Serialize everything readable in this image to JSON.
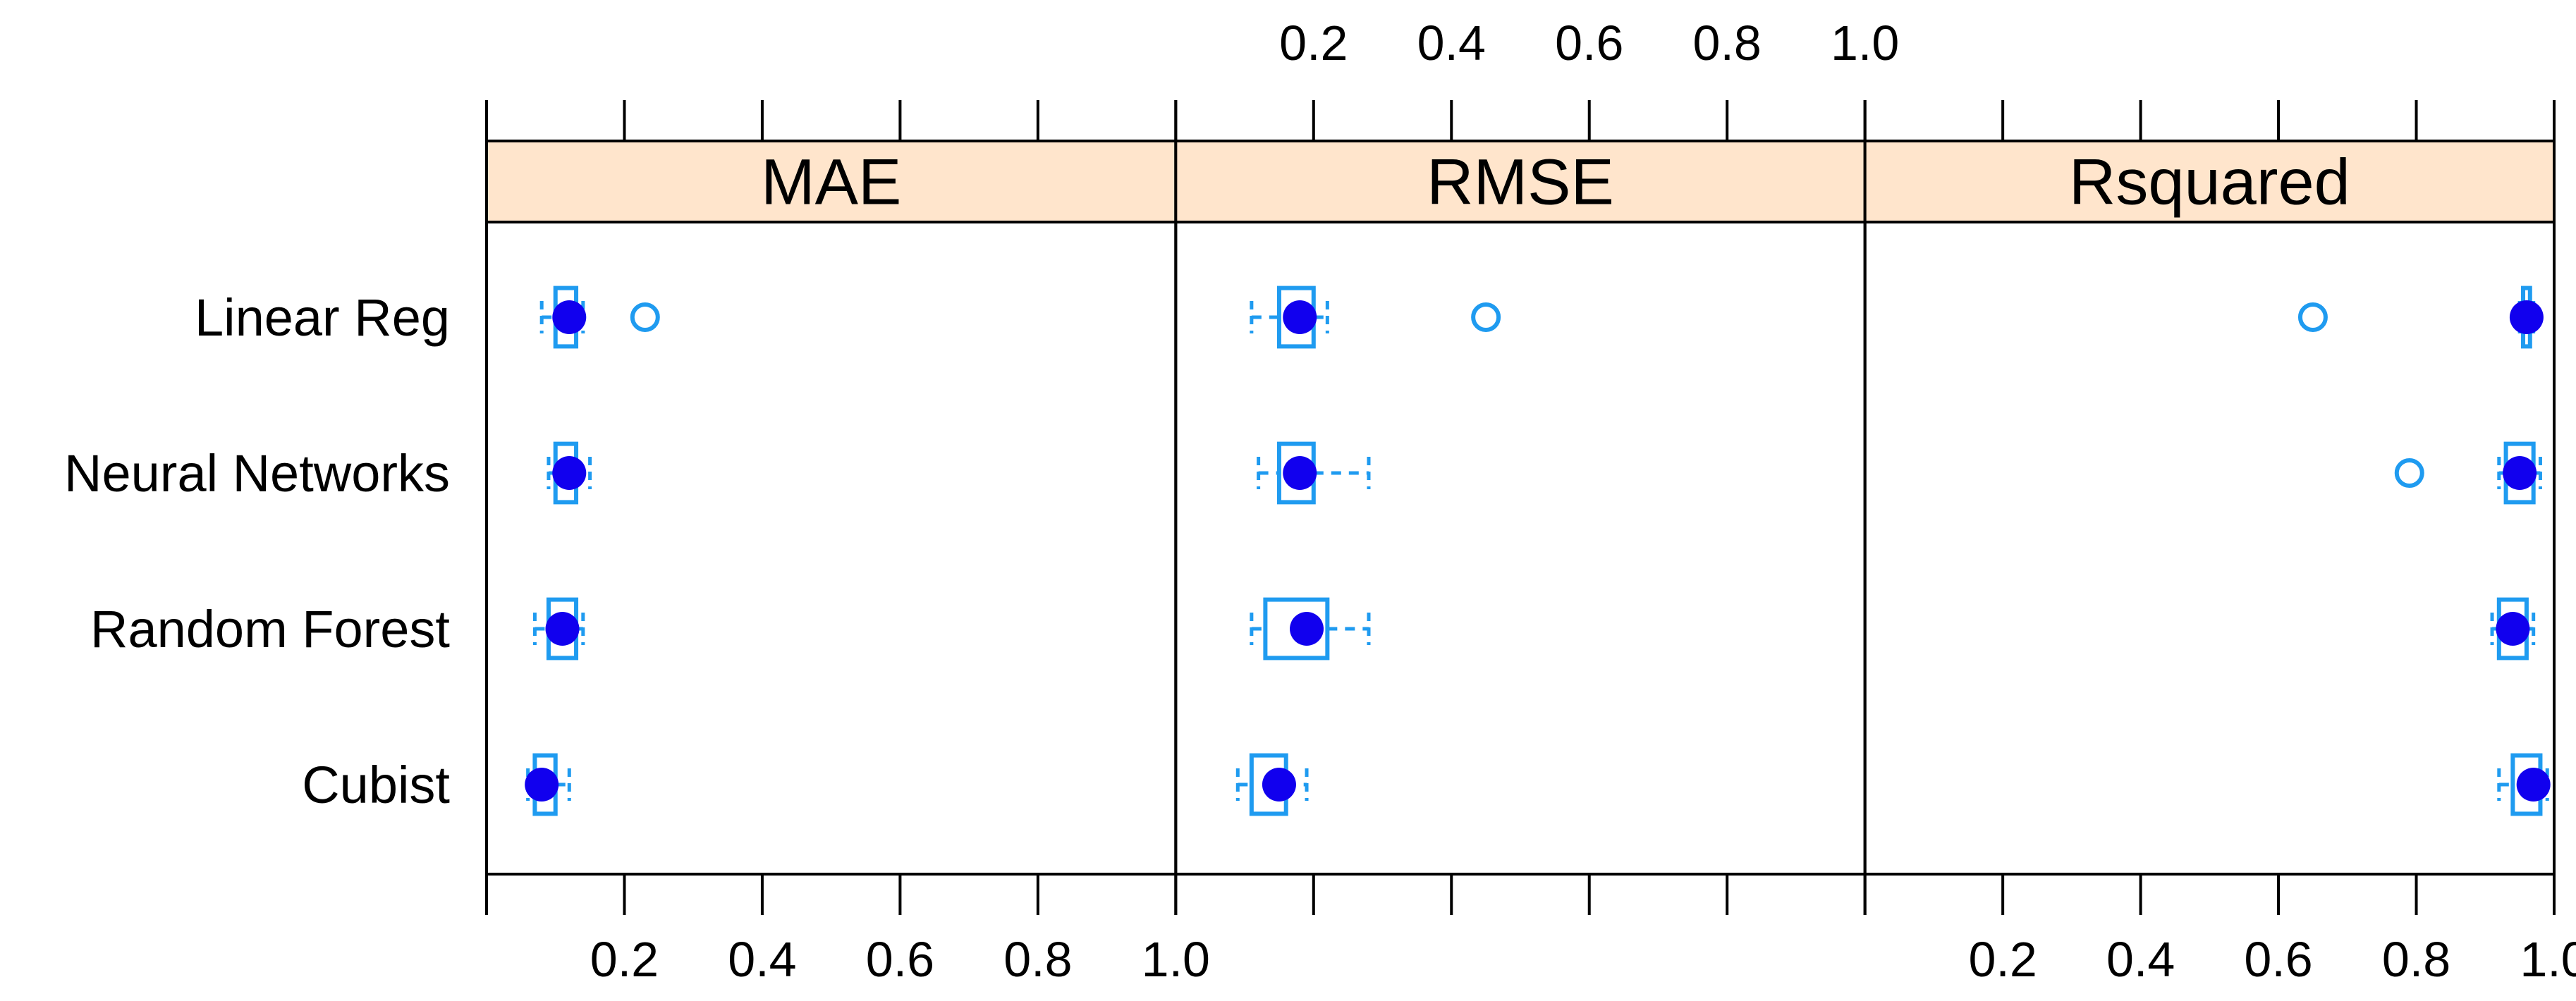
{
  "chart_data": {
    "type": "box",
    "layout": "three side-by-side panels, shared y axis of models",
    "categories": [
      "Linear Reg",
      "Neural Networks",
      "Random Forest",
      "Cubist"
    ],
    "panels": [
      {
        "name": "MAE",
        "xlim": [
          0,
          1.0
        ],
        "ticks": [
          0.2,
          0.4,
          0.6,
          0.8,
          1.0
        ],
        "tick_label_side": "bottom",
        "boxes": [
          {
            "category": "Linear Reg",
            "whisker_low": 0.08,
            "q1": 0.1,
            "median": 0.12,
            "q3": 0.13,
            "whisker_high": 0.14,
            "outliers": [
              0.23
            ]
          },
          {
            "category": "Neural Networks",
            "whisker_low": 0.09,
            "q1": 0.1,
            "median": 0.12,
            "q3": 0.13,
            "whisker_high": 0.15,
            "outliers": []
          },
          {
            "category": "Random Forest",
            "whisker_low": 0.07,
            "q1": 0.09,
            "median": 0.11,
            "q3": 0.13,
            "whisker_high": 0.14,
            "outliers": []
          },
          {
            "category": "Cubist",
            "whisker_low": 0.06,
            "q1": 0.07,
            "median": 0.08,
            "q3": 0.1,
            "whisker_high": 0.12,
            "outliers": []
          }
        ]
      },
      {
        "name": "RMSE",
        "xlim": [
          0,
          1.0
        ],
        "ticks": [
          0.2,
          0.4,
          0.6,
          0.8,
          1.0
        ],
        "tick_label_side": "top",
        "boxes": [
          {
            "category": "Linear Reg",
            "whisker_low": 0.11,
            "q1": 0.15,
            "median": 0.18,
            "q3": 0.2,
            "whisker_high": 0.22,
            "outliers": [
              0.45
            ]
          },
          {
            "category": "Neural Networks",
            "whisker_low": 0.12,
            "q1": 0.15,
            "median": 0.18,
            "q3": 0.2,
            "whisker_high": 0.28,
            "outliers": []
          },
          {
            "category": "Random Forest",
            "whisker_low": 0.11,
            "q1": 0.13,
            "median": 0.19,
            "q3": 0.22,
            "whisker_high": 0.28,
            "outliers": []
          },
          {
            "category": "Cubist",
            "whisker_low": 0.09,
            "q1": 0.11,
            "median": 0.15,
            "q3": 0.16,
            "whisker_high": 0.19,
            "outliers": []
          }
        ]
      },
      {
        "name": "Rsquared",
        "xlim": [
          0,
          1.0
        ],
        "ticks": [
          0.2,
          0.4,
          0.6,
          0.8,
          1.0
        ],
        "tick_label_side": "bottom",
        "boxes": [
          {
            "category": "Linear Reg",
            "whisker_low": 0.95,
            "q1": 0.955,
            "median": 0.96,
            "q3": 0.965,
            "whisker_high": 0.97,
            "outliers": [
              0.65
            ]
          },
          {
            "category": "Neural Networks",
            "whisker_low": 0.92,
            "q1": 0.93,
            "median": 0.95,
            "q3": 0.97,
            "whisker_high": 0.98,
            "outliers": [
              0.79
            ]
          },
          {
            "category": "Random Forest",
            "whisker_low": 0.91,
            "q1": 0.92,
            "median": 0.94,
            "q3": 0.96,
            "whisker_high": 0.97,
            "outliers": []
          },
          {
            "category": "Cubist",
            "whisker_low": 0.92,
            "q1": 0.94,
            "median": 0.97,
            "q3": 0.98,
            "whisker_high": 0.99,
            "outliers": []
          }
        ]
      }
    ],
    "colors": {
      "box": "#1f9bf0",
      "median_dot": "#1100ee",
      "strip_fill": "#ffe5cc",
      "frame": "#000000"
    },
    "grid": false,
    "legend": "none"
  }
}
